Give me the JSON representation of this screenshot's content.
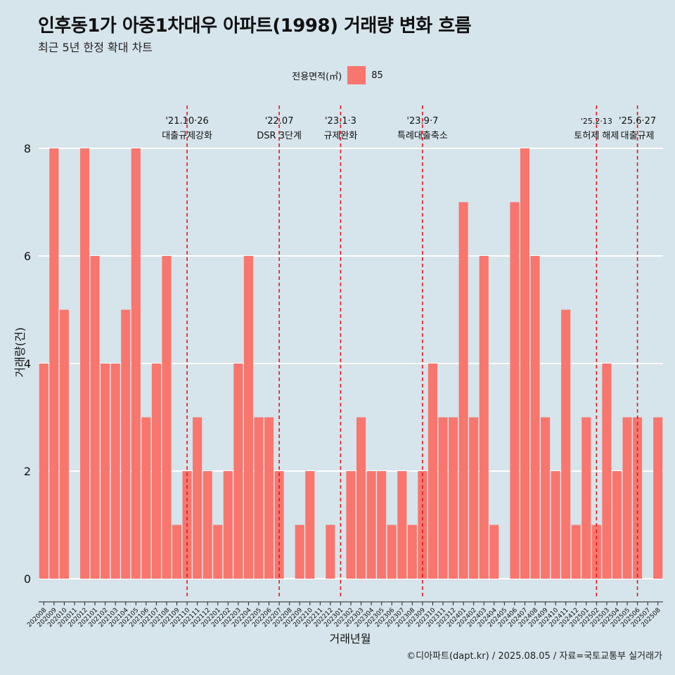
{
  "chart_data": {
    "type": "bar",
    "title": "인후동1가 아중1차대우 아파트(1998) 거래량 변화 흐름",
    "subtitle": "최근 5년 한정 확대 차트",
    "xlabel": "거래년월",
    "ylabel": "거래량(건)",
    "ylim": [
      0,
      8
    ],
    "y_ticks": [
      0,
      2,
      4,
      6,
      8
    ],
    "grid": true,
    "legend": {
      "title": "전용면적(㎡)",
      "entries": [
        "85"
      ],
      "position": "top"
    },
    "series": [
      {
        "name": "85",
        "color": "#f8766d",
        "values": [
          4,
          8,
          5,
          0,
          8,
          6,
          4,
          4,
          5,
          8,
          3,
          4,
          6,
          1,
          2,
          3,
          2,
          1,
          2,
          4,
          6,
          3,
          3,
          2,
          0,
          1,
          2,
          0,
          1,
          0,
          2,
          3,
          2,
          2,
          1,
          2,
          1,
          2,
          4,
          3,
          3,
          7,
          3,
          6,
          1,
          0,
          7,
          8,
          6,
          3,
          2,
          5,
          1,
          3,
          1,
          4,
          2,
          3,
          3,
          0,
          3
        ]
      }
    ],
    "categories": [
      "202008",
      "202009",
      "202010",
      "202011",
      "202012",
      "202101",
      "202102",
      "202103",
      "202104",
      "202105",
      "202106",
      "202107",
      "202108",
      "202109",
      "202110",
      "202111",
      "202112",
      "202201",
      "202202",
      "202203",
      "202204",
      "202205",
      "202206",
      "202207",
      "202208",
      "202209",
      "202210",
      "202211",
      "202212",
      "202301",
      "202302",
      "202303",
      "202304",
      "202305",
      "202306",
      "202307",
      "202308",
      "202309",
      "202310",
      "202311",
      "202312",
      "202401",
      "202402",
      "202403",
      "202404",
      "202405",
      "202406",
      "202407",
      "202408",
      "202409",
      "202410",
      "202411",
      "202412",
      "202501",
      "202502",
      "202503",
      "202504",
      "202505",
      "202506",
      "202507",
      "202508"
    ],
    "annotations": [
      {
        "x": "202110",
        "date": "'21.10·26",
        "label": "대출규제강화"
      },
      {
        "x": "202207",
        "date": "'22.07",
        "label": "DSR 3단계"
      },
      {
        "x": "202301",
        "date": "'23.1·3",
        "label": "규제완화"
      },
      {
        "x": "202309",
        "date": "'23.9·7",
        "label": "특례대출축소"
      },
      {
        "x": "202502",
        "date": "'25.2·13",
        "label": "토허제 해제"
      },
      {
        "x": "202506",
        "date": "'25.6·27",
        "label": "대출규제"
      }
    ]
  },
  "caption": "©디아파트(dapt.kr) / 2025.08.05 / 자료=국토교통부 실거래가"
}
